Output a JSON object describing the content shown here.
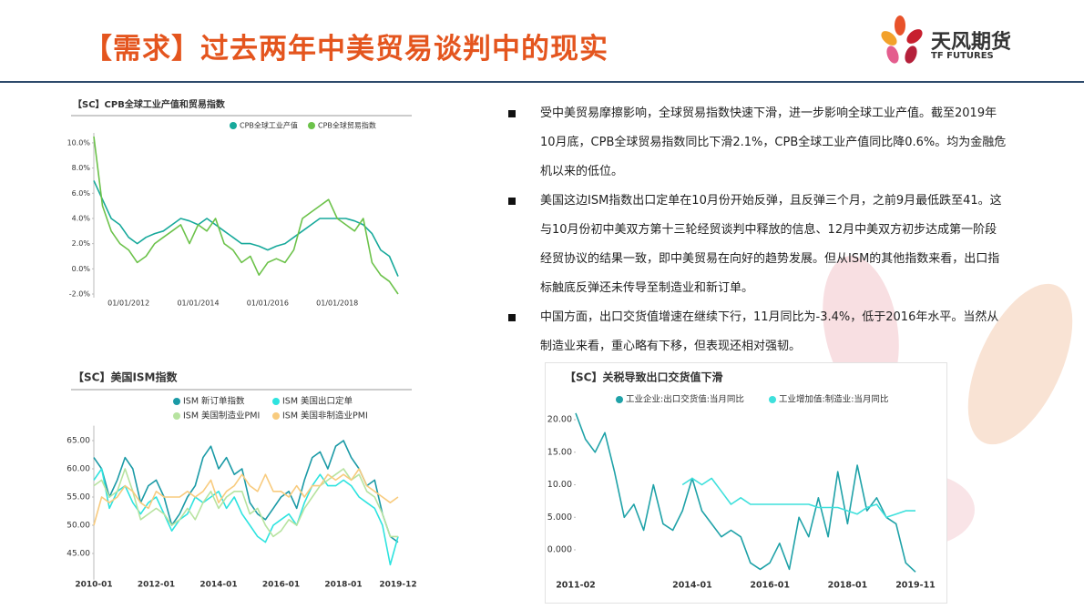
{
  "header": {
    "title": "【需求】过去两年中美贸易谈判中的现实",
    "logo_name": "天风期货",
    "logo_sub": "TF FUTURES"
  },
  "bullets": [
    "受中美贸易摩擦影响，全球贸易指数快速下滑，进一步影响全球工业产值。截至2019年10月底，CPB全球贸易指数同比下滑2.1%，CPB全球工业产值同比降0.6%。均为金融危机以来的低位。",
    "美国这边ISM指数出口定单在10月份开始反弹，且反弹三个月，之前9月最低跌至41。这与10月份初中美双方第十三轮经贸谈判中释放的信息、12月中美双方初步达成第一阶段经贸协议的结果一致，即中美贸易在向好的趋势发展。但从ISM的其他指数来看，出口指标触底反弹还未传导至制造业和新订单。",
    "中国方面，出口交货值增速在继续下行，11月同比为-3.4%，低于2016年水平。当然从制造业来看，重心略有下移，但表现还相对强韧。"
  ],
  "chart_data": [
    {
      "type": "line",
      "title": "【SC】CPB全球工业产值和贸易指数",
      "categories": [
        null,
        null,
        null,
        null,
        "01/01/2012",
        null,
        null,
        null,
        null,
        null,
        null,
        null,
        "01/01/2014",
        null,
        null,
        null,
        null,
        null,
        null,
        null,
        "01/01/2016",
        null,
        null,
        null,
        null,
        null,
        null,
        null,
        "01/01/2018",
        null,
        null,
        null,
        null,
        null,
        null,
        null
      ],
      "series": [
        {
          "name": "CPB全球工业产值",
          "color": "#17a99b",
          "values": [
            7,
            5.5,
            4,
            3.5,
            2.5,
            2,
            2.5,
            2.8,
            3,
            3.5,
            4,
            3.8,
            3.5,
            4,
            3.5,
            3,
            2.5,
            2,
            2,
            1.8,
            1.5,
            1.8,
            2,
            2.5,
            3,
            3.5,
            4,
            4,
            4,
            4,
            3.8,
            3.5,
            2.8,
            1.5,
            1,
            -0.6
          ]
        },
        {
          "name": "CPB全球贸易指数",
          "color": "#6cc24a",
          "values": [
            10.5,
            5,
            3,
            2,
            1.5,
            0.5,
            1,
            2,
            2.5,
            3,
            3.5,
            2,
            3.5,
            3,
            4,
            2,
            1.5,
            0.5,
            1,
            -0.5,
            0.5,
            0.8,
            0.5,
            1.5,
            4,
            4.5,
            5,
            5.5,
            4,
            3.5,
            3,
            4,
            0.5,
            -0.5,
            -1,
            -2
          ]
        }
      ],
      "ylim": [
        -2,
        10.5
      ],
      "yticks": [
        {
          "value": -2,
          "label": "-2.0%"
        },
        {
          "value": 0,
          "label": "0.0%"
        },
        {
          "value": 2,
          "label": "2.0%"
        },
        {
          "value": 4,
          "label": "4.0%"
        },
        {
          "value": 6,
          "label": "6.0%"
        },
        {
          "value": 8,
          "label": "8.0%"
        },
        {
          "value": 10,
          "label": "10.0%"
        }
      ],
      "grid": false
    },
    {
      "type": "line",
      "title": "【SC】美国ISM指数",
      "categories": [
        "2010-01",
        null,
        null,
        null,
        null,
        null,
        null,
        null,
        "2012-01",
        null,
        null,
        null,
        null,
        null,
        null,
        null,
        "2014-01",
        null,
        null,
        null,
        null,
        null,
        null,
        null,
        "2016-01",
        null,
        null,
        null,
        null,
        null,
        null,
        null,
        "2018-01",
        null,
        null,
        null,
        null,
        null,
        null,
        "2019-12"
      ],
      "series": [
        {
          "name": "ISM 新订单指数",
          "color": "#1a9aa6",
          "values": [
            62,
            60,
            55,
            58,
            62,
            60,
            54,
            57,
            58,
            55,
            50,
            52,
            55,
            57,
            62,
            64,
            60,
            62,
            59,
            60,
            54,
            52,
            51,
            53,
            55,
            56,
            53,
            58,
            62,
            63,
            60,
            64,
            65,
            62,
            60,
            57,
            58,
            52,
            48,
            47
          ]
        },
        {
          "name": "ISM 美国出口定单",
          "color": "#2ee3df",
          "values": [
            58,
            60,
            53,
            56,
            57,
            54,
            52,
            54,
            55,
            52,
            49,
            51,
            52,
            55,
            54,
            55,
            56,
            53,
            55,
            52,
            50,
            48,
            47,
            50,
            51,
            52,
            50,
            54,
            57,
            59,
            57,
            57,
            58,
            57,
            55,
            54,
            53,
            50,
            43,
            48
          ]
        },
        {
          "name": "ISM 美国制造业PMI",
          "color": "#b7e3a0",
          "values": [
            57,
            58,
            55,
            56,
            60,
            56,
            51,
            52,
            53,
            52,
            50,
            51,
            53,
            51,
            54,
            56,
            53,
            55,
            56,
            56,
            52,
            53,
            50,
            48,
            49,
            51,
            50,
            53,
            55,
            57,
            58,
            59,
            60,
            58,
            59,
            56,
            55,
            52,
            48,
            48
          ]
        },
        {
          "name": "ISM 美国非制造业PMI",
          "color": "#f8cb7e",
          "values": [
            50,
            55,
            54,
            55,
            57,
            56,
            54,
            53,
            56,
            55,
            55,
            55,
            56,
            55,
            56,
            58,
            54,
            56,
            57,
            59,
            57,
            56,
            59,
            56,
            56,
            55,
            57,
            55,
            57,
            57,
            59,
            58,
            59,
            58,
            60,
            57,
            56,
            55,
            54,
            55
          ]
        }
      ],
      "ylim": [
        41,
        67
      ],
      "yticks": [
        {
          "value": 45,
          "label": "45.00"
        },
        {
          "value": 50,
          "label": "50.00"
        },
        {
          "value": 55,
          "label": "55.00"
        },
        {
          "value": 60,
          "label": "60.00"
        },
        {
          "value": 65,
          "label": "65.00"
        }
      ],
      "grid": false
    },
    {
      "type": "line",
      "title": "【SC】关税导致出口交货值下滑",
      "categories": [
        "2011-02",
        null,
        null,
        null,
        null,
        null,
        null,
        null,
        null,
        null,
        null,
        null,
        "2014-01",
        null,
        null,
        null,
        null,
        null,
        null,
        null,
        "2016-01",
        null,
        null,
        null,
        null,
        null,
        null,
        null,
        "2018-01",
        null,
        null,
        null,
        null,
        null,
        null,
        "2019-11"
      ],
      "series": [
        {
          "name": "工业企业:出口交货值:当月同比",
          "color": "#1fa2a8",
          "values": [
            21,
            17,
            15,
            18,
            12,
            5,
            7,
            3,
            10,
            4,
            3,
            6,
            11,
            6,
            4,
            2,
            3,
            2,
            -2,
            -3,
            -2,
            1,
            -3,
            5,
            2,
            8,
            2,
            12,
            4,
            13,
            6,
            8,
            5,
            4,
            -2,
            -3.4
          ]
        },
        {
          "name": "工业增加值:制造业:当月同比",
          "color": "#3ee0dc",
          "values": [
            null,
            null,
            null,
            null,
            null,
            null,
            null,
            null,
            null,
            null,
            null,
            10,
            11,
            10,
            11,
            9,
            7,
            8,
            7,
            7,
            7,
            7,
            7,
            7,
            7,
            6.5,
            6.5,
            6.5,
            6,
            5.5,
            6.5,
            7,
            5,
            5.5,
            6,
            6
          ]
        }
      ],
      "ylim": [
        -3.5,
        21
      ],
      "yticks": [
        {
          "value": 0,
          "label": "0.000"
        },
        {
          "value": 5,
          "label": "5.000"
        },
        {
          "value": 10,
          "label": "10.00"
        },
        {
          "value": 15,
          "label": "15.00"
        },
        {
          "value": 20,
          "label": "20.00"
        }
      ],
      "grid": false
    }
  ]
}
